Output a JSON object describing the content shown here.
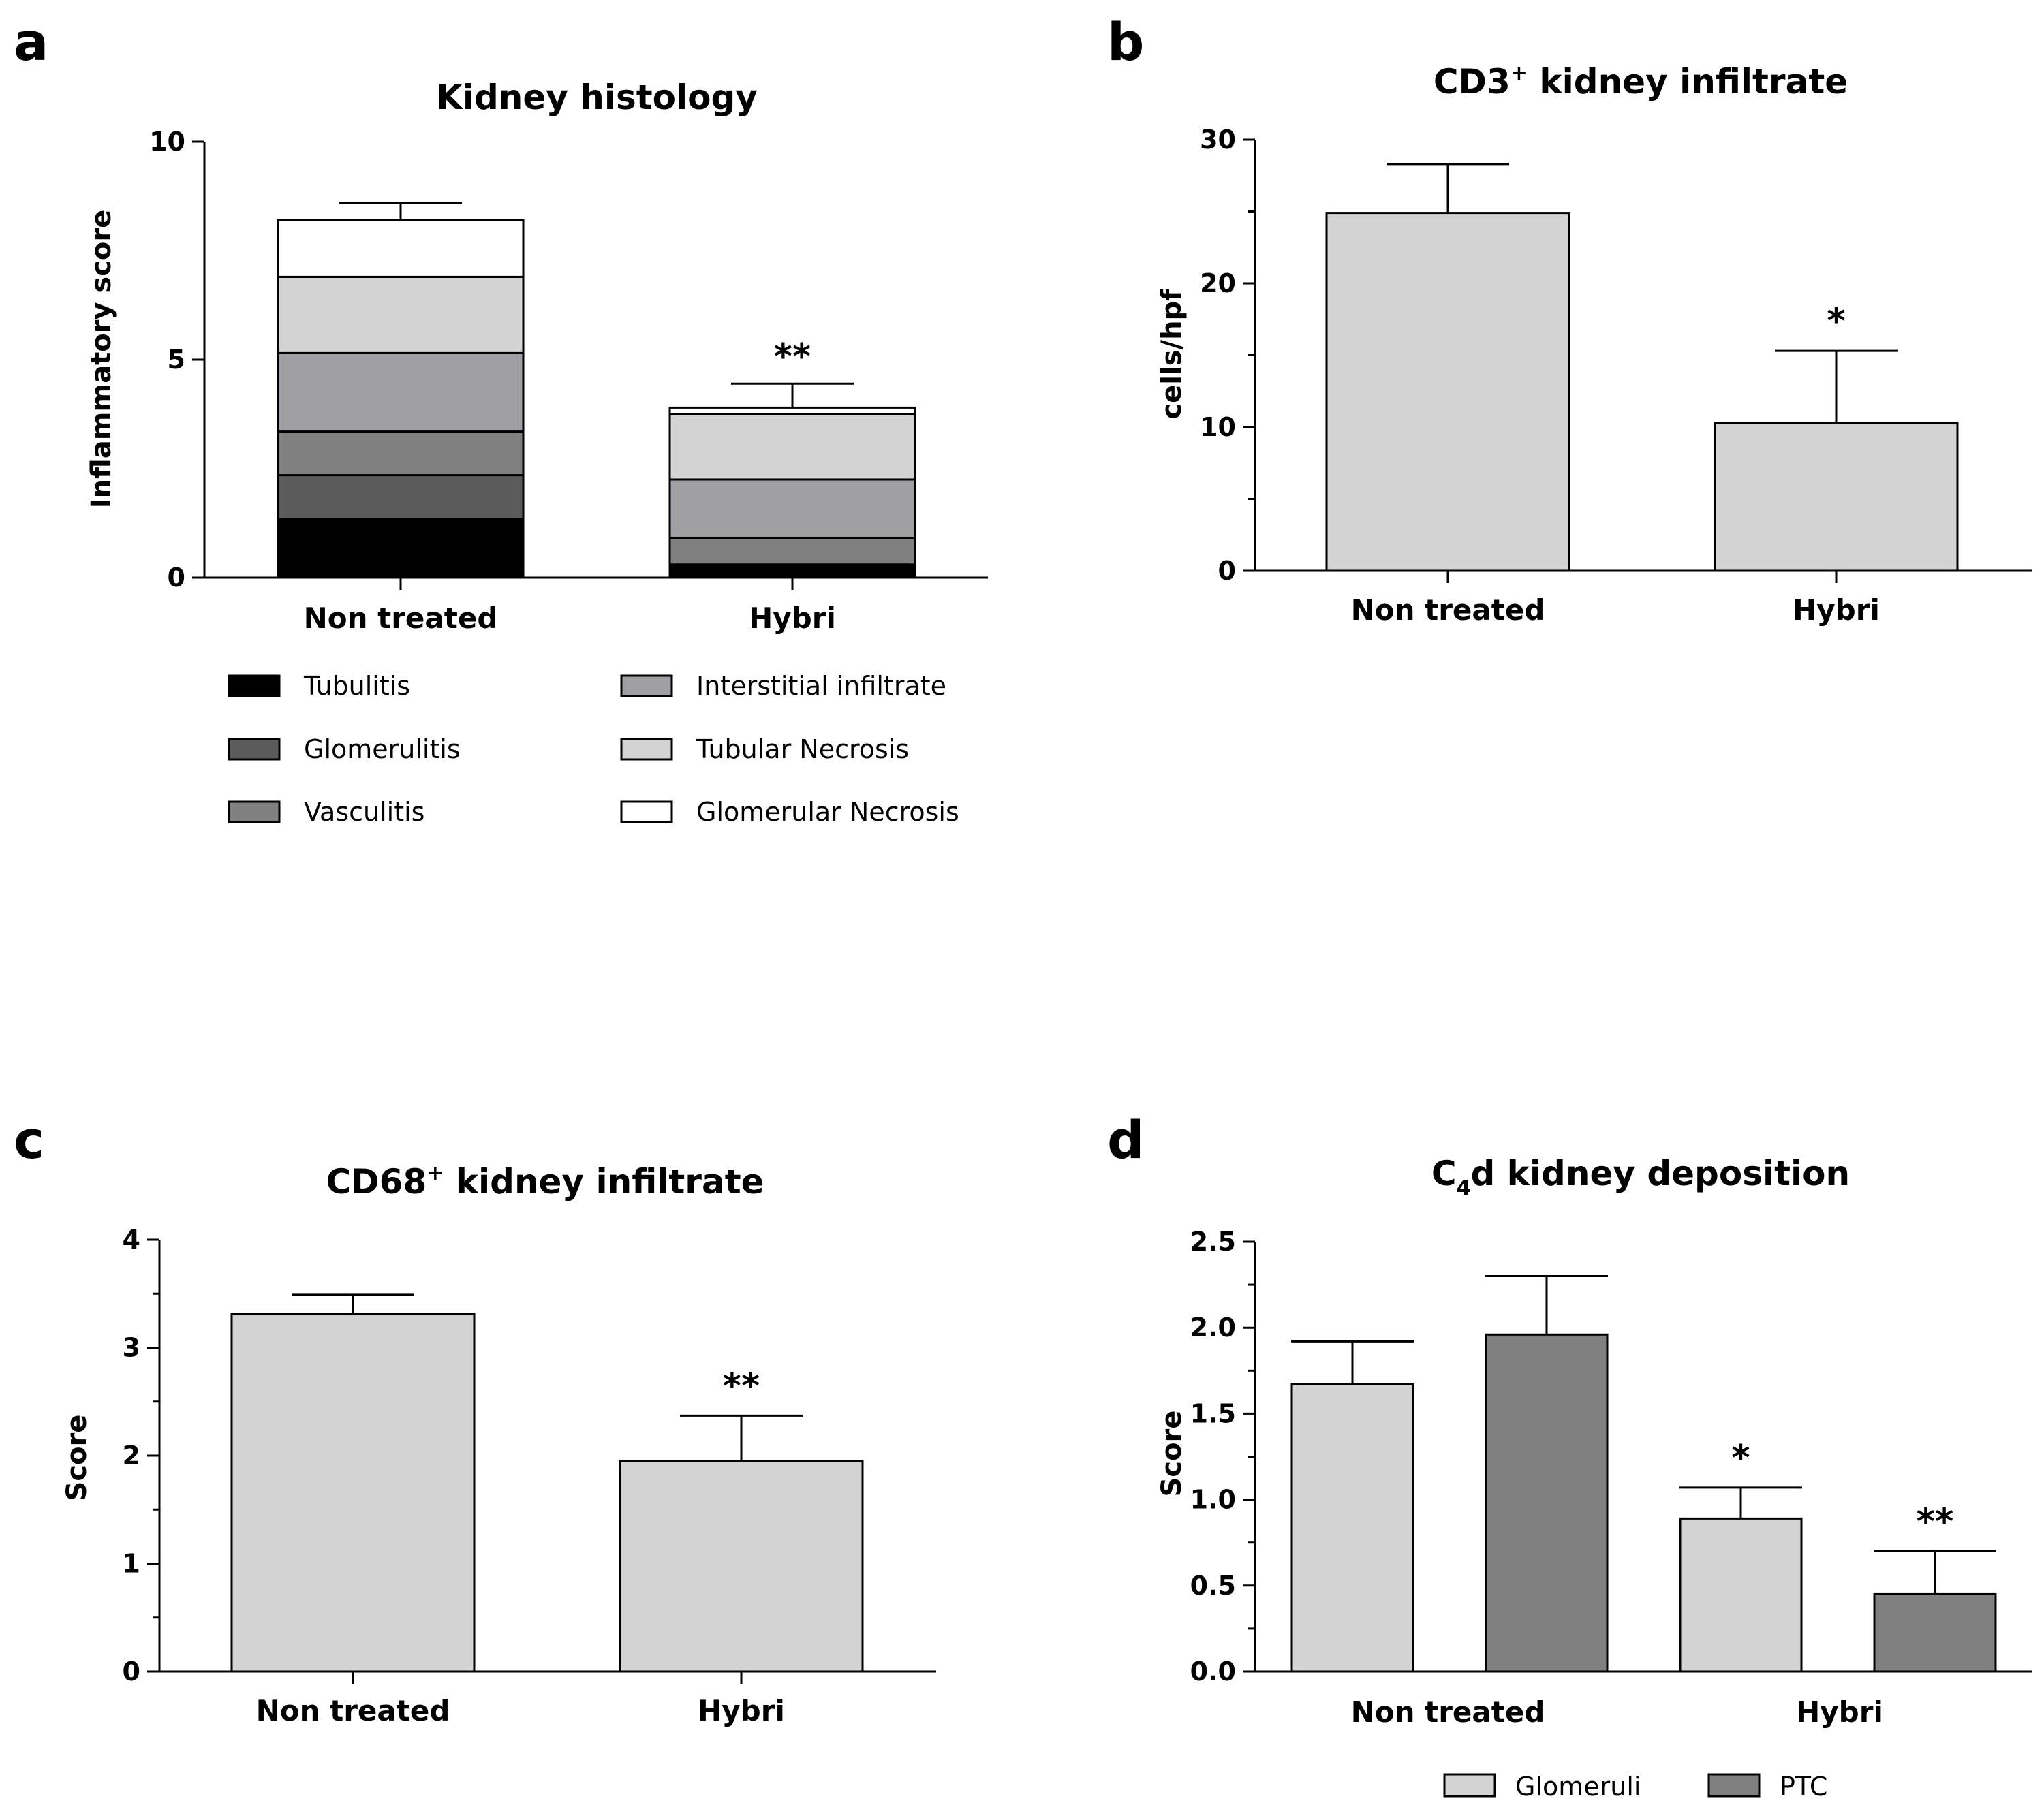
{
  "chart_data": [
    {
      "panel": "a",
      "type": "bar",
      "stacked": true,
      "title": "Kidney histology",
      "xlabel": "",
      "ylabel": "Inflammatory score",
      "ylim": [
        0,
        10
      ],
      "yticks": [
        0,
        5,
        10
      ],
      "categories": [
        "Non treated",
        "Hybri"
      ],
      "series": [
        {
          "name": "Tubulitis",
          "color": "#000000",
          "values": [
            1.35,
            0.3
          ]
        },
        {
          "name": "Glomerulitis",
          "color": "#5b5b5b",
          "values": [
            1.0,
            0.0
          ]
        },
        {
          "name": "Vasculitis",
          "color": "#808080",
          "values": [
            1.0,
            0.6
          ]
        },
        {
          "name": "Interstitial infiltrate",
          "color": "#a0a0a4",
          "values": [
            1.8,
            1.35
          ]
        },
        {
          "name": "Tubular Necrosis",
          "color": "#d3d3d3",
          "values": [
            1.75,
            1.5
          ]
        },
        {
          "name": "Glomerular Necrosis",
          "color": "#ffffff",
          "values": [
            1.3,
            0.15
          ]
        }
      ],
      "error_bars_upper": [
        0.4,
        0.55
      ],
      "annotations": [
        "",
        "**"
      ],
      "legend_position": "bottom"
    },
    {
      "panel": "b",
      "type": "bar",
      "title": "CD3",
      "title_sup": "+",
      "title_rest": " kidney infiltrate",
      "xlabel": "",
      "ylabel": "cells/hpf",
      "ylim": [
        0,
        30
      ],
      "yticks": [
        0,
        10,
        20,
        30
      ],
      "categories": [
        "Non treated",
        "Hybri"
      ],
      "series": [
        {
          "name": "cells/hpf",
          "color": "#d3d3d3",
          "values": [
            24.9,
            10.3
          ]
        }
      ],
      "error_bars_upper": [
        3.4,
        5.0
      ],
      "annotations": [
        "",
        "*"
      ]
    },
    {
      "panel": "c",
      "type": "bar",
      "title": "CD68",
      "title_sup": "+",
      "title_rest": " kidney infiltrate",
      "xlabel": "",
      "ylabel": "Score",
      "ylim": [
        0,
        4
      ],
      "yticks": [
        0,
        1,
        2,
        3,
        4
      ],
      "categories": [
        "Non treated",
        "Hybri"
      ],
      "series": [
        {
          "name": "Score",
          "color": "#d3d3d3",
          "values": [
            3.31,
            1.95
          ]
        }
      ],
      "error_bars_upper": [
        0.18,
        0.42
      ],
      "annotations": [
        "",
        "**"
      ]
    },
    {
      "panel": "d",
      "type": "bar",
      "title": "C",
      "title_sub": "4",
      "title_rest": "d kidney deposition",
      "xlabel": "",
      "ylabel": "Score",
      "ylim": [
        0,
        2.5
      ],
      "yticks": [
        "0.0",
        "0.5",
        "1.0",
        "1.5",
        "2.0",
        "2.5"
      ],
      "categories": [
        "Non treated",
        "Hybri"
      ],
      "series": [
        {
          "name": "Glomeruli",
          "color": "#d3d3d3",
          "values": [
            1.67,
            0.89
          ],
          "error_upper": [
            0.25,
            0.18
          ],
          "annotations": [
            "",
            "*"
          ]
        },
        {
          "name": "PTC",
          "color": "#808080",
          "values": [
            1.96,
            0.45
          ],
          "error_upper": [
            0.34,
            0.25
          ],
          "annotations": [
            "",
            "**"
          ]
        }
      ],
      "legend_position": "bottom"
    }
  ]
}
